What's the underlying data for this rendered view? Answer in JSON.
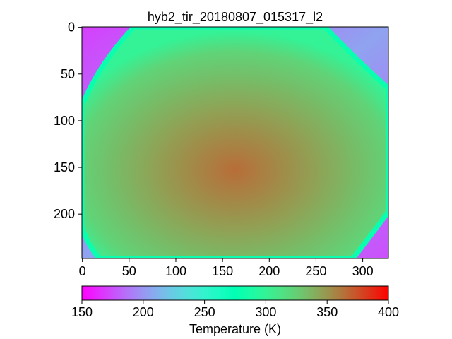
{
  "chart_data": {
    "type": "heatmap",
    "title": "hyb2_tir_20180807_015317_l2",
    "xlabel": "",
    "ylabel": "",
    "image_width": 328,
    "image_height": 248,
    "xticks": [
      0,
      50,
      100,
      150,
      200,
      250,
      300
    ],
    "yticks": [
      0,
      50,
      100,
      150,
      200
    ],
    "y_axis_inverted": true,
    "colormap": "rainbow",
    "colorbar": {
      "label": "Temperature (K)",
      "vmin": 150,
      "vmax": 400,
      "ticks": [
        150,
        200,
        250,
        300,
        350,
        400
      ],
      "orientation": "horizontal",
      "placement": "bottom"
    },
    "background_value_approx": 205,
    "limb_value_approx": 300,
    "center_value_approx": 345,
    "hot_spot_value_approx": 365
  }
}
